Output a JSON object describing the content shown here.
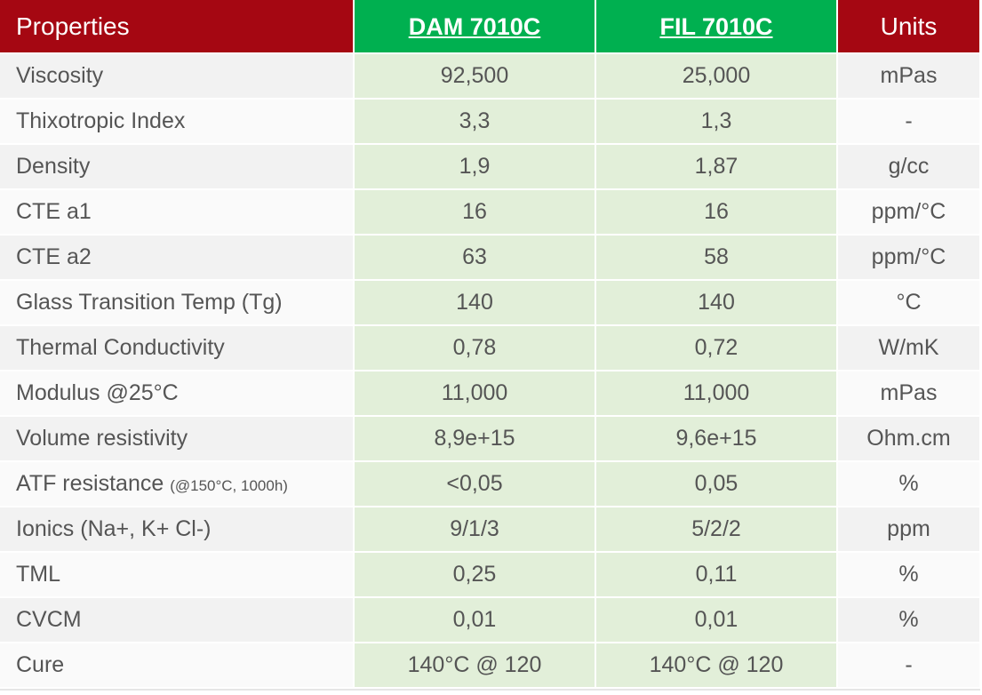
{
  "header": {
    "properties": "Properties",
    "product1": "DAM 7010C",
    "product2": "FIL 7010C",
    "units": "Units"
  },
  "rows": [
    {
      "property": "Viscosity",
      "note": "",
      "dam": "92,500",
      "fil": "25,000",
      "unit": "mPas"
    },
    {
      "property": "Thixotropic Index",
      "note": "",
      "dam": "3,3",
      "fil": "1,3",
      "unit": "-"
    },
    {
      "property": "Density",
      "note": "",
      "dam": "1,9",
      "fil": "1,87",
      "unit": "g/cc"
    },
    {
      "property": "CTE a1",
      "note": "",
      "dam": "16",
      "fil": "16",
      "unit": "ppm/°C"
    },
    {
      "property": "CTE a2",
      "note": "",
      "dam": "63",
      "fil": "58",
      "unit": "ppm/°C"
    },
    {
      "property": "Glass Transition Temp (Tg)",
      "note": "",
      "dam": "140",
      "fil": "140",
      "unit": "°C"
    },
    {
      "property": "Thermal Conductivity",
      "note": "",
      "dam": "0,78",
      "fil": "0,72",
      "unit": "W/mK"
    },
    {
      "property": "Modulus @25°C",
      "note": "",
      "dam": "11,000",
      "fil": "11,000",
      "unit": "mPas"
    },
    {
      "property": "Volume resistivity",
      "note": "",
      "dam": "8,9e+15",
      "fil": "9,6e+15",
      "unit": "Ohm.cm"
    },
    {
      "property": "ATF resistance ",
      "note": "(@150°C, 1000h)",
      "dam": "<0,05",
      "fil": "0,05",
      "unit": "%"
    },
    {
      "property": "Ionics (Na+, K+ Cl-)",
      "note": "",
      "dam": "9/1/3",
      "fil": "5/2/2",
      "unit": "ppm"
    },
    {
      "property": "TML",
      "note": "",
      "dam": "0,25",
      "fil": "0,11",
      "unit": "%"
    },
    {
      "property": "CVCM",
      "note": "",
      "dam": "0,01",
      "fil": "0,01",
      "unit": "%"
    },
    {
      "property": "Cure",
      "note": "",
      "dam": "140°C @ 120",
      "fil": "140°C @ 120",
      "unit": "-"
    }
  ],
  "colors": {
    "header_red": "#a50712",
    "header_green": "#00b050",
    "value_cell_green": "#e2efd9",
    "text_gray": "#555555"
  }
}
